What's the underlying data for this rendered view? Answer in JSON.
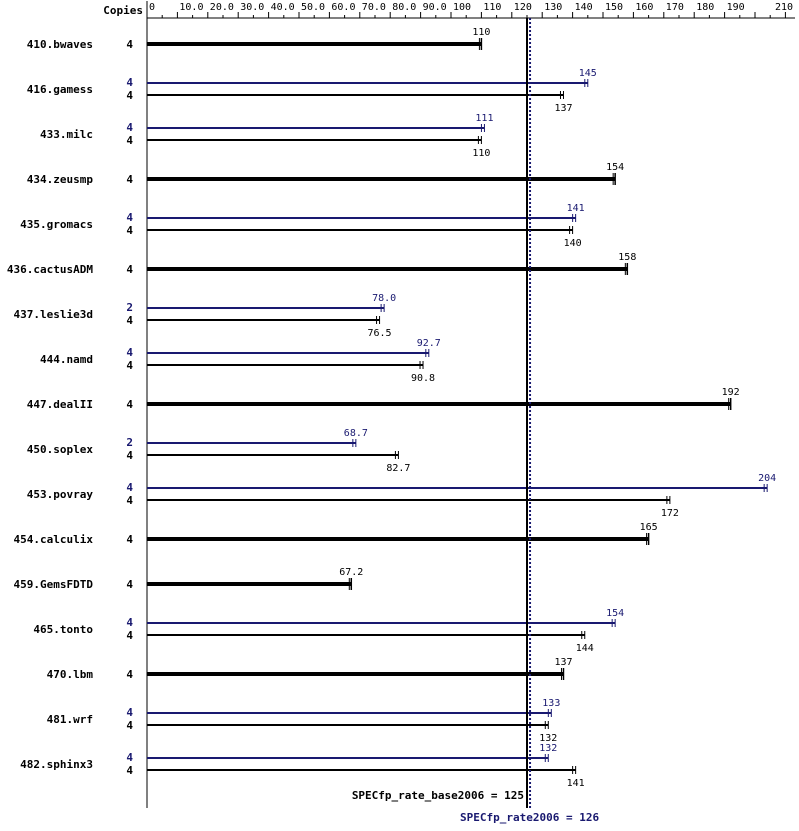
{
  "chart_data": {
    "type": "bar",
    "orientation": "horizontal",
    "copies_header": "Copies",
    "xlim": [
      0,
      210
    ],
    "ticks": [
      {
        "v": 0,
        "label": "0"
      },
      {
        "v": 10,
        "label": "10.0"
      },
      {
        "v": 20,
        "label": "20.0"
      },
      {
        "v": 30,
        "label": "30.0"
      },
      {
        "v": 40,
        "label": "40.0"
      },
      {
        "v": 50,
        "label": "50.0"
      },
      {
        "v": 60,
        "label": "60.0"
      },
      {
        "v": 70,
        "label": "70.0"
      },
      {
        "v": 80,
        "label": "80.0"
      },
      {
        "v": 90,
        "label": "90.0"
      },
      {
        "v": 100,
        "label": "100"
      },
      {
        "v": 110,
        "label": "110"
      },
      {
        "v": 120,
        "label": "120"
      },
      {
        "v": 130,
        "label": "130"
      },
      {
        "v": 140,
        "label": "140"
      },
      {
        "v": 150,
        "label": "150"
      },
      {
        "v": 160,
        "label": "160"
      },
      {
        "v": 170,
        "label": "170"
      },
      {
        "v": 180,
        "label": "180"
      },
      {
        "v": 190,
        "label": "190"
      },
      {
        "v": 210,
        "label": "210"
      }
    ],
    "colors": {
      "base": "#000000",
      "peak": "#191970"
    },
    "benchmarks": [
      {
        "name": "410.bwaves",
        "base": {
          "copies": "4",
          "value": 110,
          "label": "110"
        },
        "peak": null
      },
      {
        "name": "416.gamess",
        "base": {
          "copies": "4",
          "value": 137,
          "label": "137"
        },
        "peak": {
          "copies": "4",
          "value": 145,
          "label": "145"
        }
      },
      {
        "name": "433.milc",
        "base": {
          "copies": "4",
          "value": 110,
          "label": "110"
        },
        "peak": {
          "copies": "4",
          "value": 111,
          "label": "111"
        }
      },
      {
        "name": "434.zeusmp",
        "base": {
          "copies": "4",
          "value": 154,
          "label": "154"
        },
        "peak": null
      },
      {
        "name": "435.gromacs",
        "base": {
          "copies": "4",
          "value": 140,
          "label": "140"
        },
        "peak": {
          "copies": "4",
          "value": 141,
          "label": "141"
        }
      },
      {
        "name": "436.cactusADM",
        "base": {
          "copies": "4",
          "value": 158,
          "label": "158"
        },
        "peak": null
      },
      {
        "name": "437.leslie3d",
        "base": {
          "copies": "4",
          "value": 76.5,
          "label": "76.5"
        },
        "peak": {
          "copies": "2",
          "value": 78.0,
          "label": "78.0"
        }
      },
      {
        "name": "444.namd",
        "base": {
          "copies": "4",
          "value": 90.8,
          "label": "90.8"
        },
        "peak": {
          "copies": "4",
          "value": 92.7,
          "label": "92.7"
        }
      },
      {
        "name": "447.dealII",
        "base": {
          "copies": "4",
          "value": 192,
          "label": "192"
        },
        "peak": null
      },
      {
        "name": "450.soplex",
        "base": {
          "copies": "4",
          "value": 82.7,
          "label": "82.7"
        },
        "peak": {
          "copies": "2",
          "value": 68.7,
          "label": "68.7"
        }
      },
      {
        "name": "453.povray",
        "base": {
          "copies": "4",
          "value": 172,
          "label": "172"
        },
        "peak": {
          "copies": "4",
          "value": 204,
          "label": "204"
        }
      },
      {
        "name": "454.calculix",
        "base": {
          "copies": "4",
          "value": 165,
          "label": "165"
        },
        "peak": null
      },
      {
        "name": "459.GemsFDTD",
        "base": {
          "copies": "4",
          "value": 67.2,
          "label": "67.2"
        },
        "peak": null
      },
      {
        "name": "465.tonto",
        "base": {
          "copies": "4",
          "value": 144,
          "label": "144"
        },
        "peak": {
          "copies": "4",
          "value": 154,
          "label": "154"
        }
      },
      {
        "name": "470.lbm",
        "base": {
          "copies": "4",
          "value": 137,
          "label": "137"
        },
        "peak": null
      },
      {
        "name": "481.wrf",
        "base": {
          "copies": "4",
          "value": 132,
          "label": "132"
        },
        "peak": {
          "copies": "4",
          "value": 133,
          "label": "133"
        }
      },
      {
        "name": "482.sphinx3",
        "base": {
          "copies": "4",
          "value": 141,
          "label": "141"
        },
        "peak": {
          "copies": "4",
          "value": 132,
          "label": "132"
        }
      }
    ],
    "base_ref": {
      "value": 125,
      "label": "SPECfp_rate_base2006 = 125"
    },
    "peak_ref": {
      "value": 126,
      "label": "SPECfp_rate2006 = 126"
    }
  }
}
